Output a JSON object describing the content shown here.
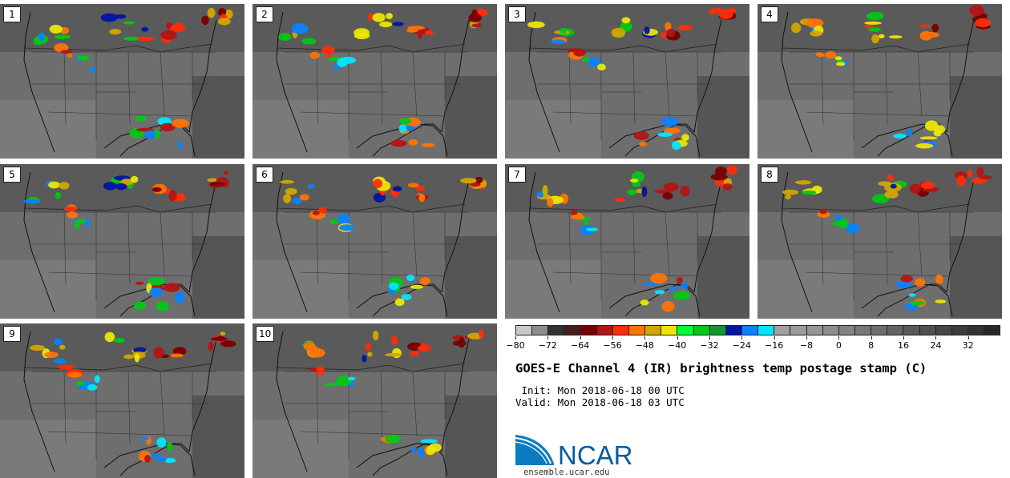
{
  "panels": [
    {
      "label": "1"
    },
    {
      "label": "2"
    },
    {
      "label": "3"
    },
    {
      "label": "4"
    },
    {
      "label": "5"
    },
    {
      "label": "6"
    },
    {
      "label": "7"
    },
    {
      "label": "8"
    },
    {
      "label": "9"
    },
    {
      "label": "10"
    }
  ],
  "colorbar": {
    "colors": [
      "#c8c8c8",
      "#8c8c8c",
      "#323232",
      "#461e1e",
      "#780000",
      "#b41414",
      "#ff2d0a",
      "#ff7305",
      "#d2a500",
      "#ebe600",
      "#00ff32",
      "#00c814",
      "#149632",
      "#0014a5",
      "#0a82ff",
      "#00e6ff",
      "#a0a0a0",
      "#9b9b9b",
      "#969696",
      "#8c8c8c",
      "#828282",
      "#787878",
      "#6e6e6e",
      "#646464",
      "#5a5a5a",
      "#505050",
      "#464646",
      "#3c3c3c",
      "#323232",
      "#282828"
    ],
    "tick_labels": [
      "−80",
      "−72",
      "−64",
      "−56",
      "−48",
      "−40",
      "−32",
      "−24",
      "−16",
      "−8",
      "0",
      "8",
      "16",
      "24",
      "32"
    ]
  },
  "title": "GOES-E Channel 4 (IR) brightness temp postage stamp (C)",
  "init_line": " Init: Mon 2018-06-18 00 UTC",
  "valid_line": "Valid: Mon 2018-06-18 03 UTC",
  "logo": {
    "text": "NCAR",
    "color": "#0a7cc1"
  },
  "url": "ensemble.ucar.edu"
}
